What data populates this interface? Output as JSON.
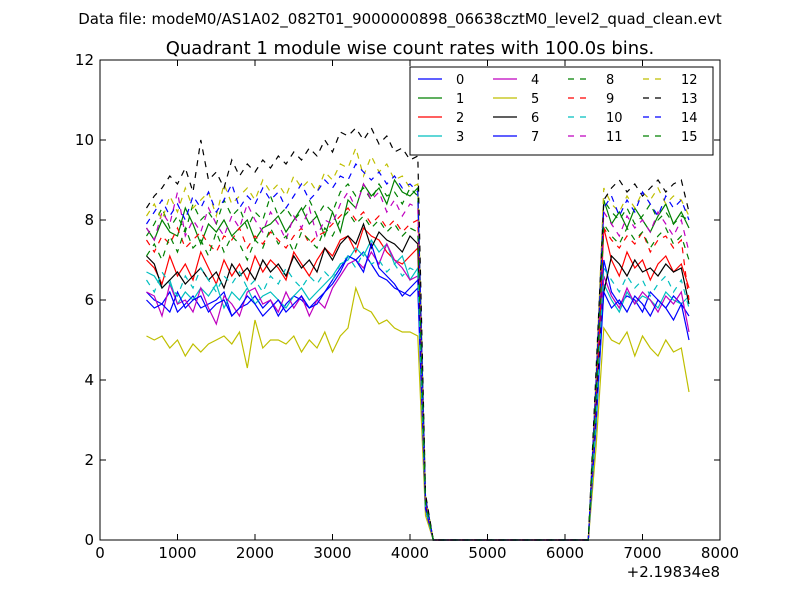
{
  "suptitle": "Data file: modeM0/AS1A02_082T01_9000000898_06638cztM0_level2_quad_clean.evt",
  "chart_data": {
    "type": "line",
    "title": "Quadrant 1 module wise count rates with 100.0s bins.",
    "xlabel": "",
    "ylabel": "",
    "x_offset_label": "+2.19834e8",
    "xlim": [
      0,
      8000
    ],
    "ylim": [
      0,
      12
    ],
    "xticks": [
      0,
      1000,
      2000,
      3000,
      4000,
      5000,
      6000,
      7000,
      8000
    ],
    "yticks": [
      0,
      2,
      4,
      6,
      8,
      10,
      12
    ],
    "grid": false,
    "legend_position": "top-right",
    "segments": [
      {
        "x_start": 600,
        "x_end": 4100,
        "step": 100,
        "y_index_start": 0
      },
      {
        "x_start": 4100,
        "x_end": 4300,
        "values_fraction": [
          1.0,
          0.12,
          0.0
        ]
      },
      {
        "x_start": 4300,
        "x_end": 6300,
        "baseline": 0
      },
      {
        "x_start": 6300,
        "x_end": 7600,
        "step": 100
      }
    ],
    "series": [
      {
        "name": "0",
        "color": "#0000ff",
        "dashed": false,
        "active": [
          6.2,
          6.0,
          5.9,
          6.2,
          5.7,
          5.9,
          6.1,
          5.8,
          5.9,
          6.0,
          6.2,
          5.6,
          5.8,
          5.9,
          6.1,
          5.8,
          6.0,
          5.6,
          5.9,
          6.1,
          6.0,
          5.8,
          6.0,
          6.2,
          6.5,
          6.8,
          7.1,
          7.0,
          7.2,
          6.9,
          6.6,
          6.5,
          6.3,
          6.2,
          6.1,
          6.3
        ],
        "active2": [
          0.0,
          3.0,
          7.0,
          6.2,
          5.9,
          6.1,
          6.0,
          5.7,
          6.2,
          6.0,
          5.8,
          6.1,
          5.9,
          5.6
        ]
      },
      {
        "name": "1",
        "color": "#008000",
        "dashed": false,
        "active": [
          7.8,
          7.5,
          8.0,
          7.7,
          7.6,
          8.3,
          7.9,
          7.4,
          7.9,
          7.7,
          8.0,
          7.6,
          7.8,
          8.0,
          7.5,
          7.8,
          7.9,
          8.1,
          7.7,
          8.0,
          8.3,
          7.9,
          8.1,
          7.6,
          8.2,
          7.7,
          8.5,
          8.3,
          8.9,
          8.6,
          8.8,
          8.4,
          9.0,
          8.7,
          8.6,
          8.8
        ],
        "active2": [
          0.0,
          3.6,
          8.5,
          7.9,
          8.2,
          7.8,
          8.3,
          8.0,
          7.7,
          8.1,
          8.4,
          7.9,
          8.2,
          7.8
        ]
      },
      {
        "name": "2",
        "color": "#ff0000",
        "dashed": false,
        "active": [
          7.0,
          6.8,
          6.4,
          7.1,
          6.6,
          6.9,
          6.5,
          7.2,
          6.8,
          6.4,
          7.0,
          6.6,
          6.9,
          6.5,
          7.1,
          6.7,
          7.0,
          6.8,
          6.5,
          7.2,
          6.9,
          6.6,
          7.0,
          7.3,
          7.1,
          7.5,
          7.6,
          7.2,
          7.8,
          7.6,
          7.5,
          7.2,
          7.0,
          6.9,
          7.1,
          7.3
        ],
        "active2": [
          0.0,
          3.2,
          7.8,
          7.0,
          6.6,
          7.2,
          6.8,
          7.0,
          6.5,
          6.9,
          7.1,
          6.7,
          6.9,
          6.3
        ]
      },
      {
        "name": "3",
        "color": "#00bfbf",
        "dashed": false,
        "active": [
          6.7,
          6.6,
          6.3,
          6.5,
          5.9,
          6.2,
          6.0,
          6.3,
          6.1,
          6.4,
          5.8,
          6.2,
          6.0,
          6.3,
          5.9,
          6.1,
          6.2,
          6.0,
          5.8,
          6.1,
          6.3,
          6.0,
          6.2,
          6.4,
          6.6,
          6.9,
          7.0,
          7.3,
          7.1,
          7.5,
          7.2,
          7.4,
          6.9,
          7.1,
          6.5,
          6.8
        ],
        "active2": [
          0.0,
          2.8,
          6.4,
          6.0,
          5.7,
          6.2,
          5.9,
          6.1,
          6.0,
          5.8,
          6.2,
          6.0,
          5.9,
          6.1
        ]
      },
      {
        "name": "4",
        "color": "#bf00bf",
        "dashed": false,
        "active": [
          6.2,
          6.1,
          5.6,
          6.4,
          5.9,
          6.0,
          5.7,
          6.3,
          5.8,
          5.4,
          6.1,
          5.9,
          5.6,
          6.2,
          6.3,
          5.9,
          6.0,
          5.7,
          6.2,
          5.8,
          6.1,
          5.6,
          6.0,
          5.8,
          6.3,
          6.6,
          6.9,
          7.0,
          6.8,
          7.2,
          6.9,
          7.4,
          7.0,
          6.8,
          6.5,
          6.6
        ],
        "active2": [
          0.0,
          2.9,
          6.6,
          6.1,
          5.8,
          6.3,
          5.9,
          6.2,
          6.0,
          5.7,
          6.1,
          5.9,
          6.2,
          5.2
        ]
      },
      {
        "name": "5",
        "color": "#bfbf00",
        "dashed": false,
        "active": [
          5.1,
          5.0,
          5.1,
          4.8,
          5.0,
          4.6,
          4.9,
          4.7,
          4.9,
          5.0,
          5.1,
          4.9,
          5.2,
          4.3,
          5.5,
          4.8,
          5.0,
          5.0,
          4.9,
          5.1,
          4.7,
          5.0,
          4.8,
          5.2,
          4.7,
          5.1,
          5.3,
          6.3,
          5.8,
          5.7,
          5.4,
          5.5,
          5.3,
          5.2,
          5.2,
          5.1
        ],
        "active2": [
          0.0,
          2.3,
          5.3,
          5.0,
          4.9,
          5.2,
          4.6,
          5.1,
          4.8,
          4.6,
          5.0,
          4.7,
          4.8,
          3.7
        ]
      },
      {
        "name": "6",
        "color": "#000000",
        "dashed": false,
        "active": [
          7.1,
          6.9,
          6.3,
          6.5,
          6.7,
          6.4,
          6.6,
          6.8,
          6.5,
          6.7,
          6.3,
          6.9,
          6.6,
          6.8,
          6.5,
          7.0,
          6.7,
          6.9,
          6.6,
          7.1,
          6.8,
          7.0,
          6.7,
          7.3,
          7.0,
          7.4,
          7.6,
          7.4,
          7.9,
          7.3,
          7.7,
          7.5,
          7.4,
          7.2,
          7.6,
          7.4
        ],
        "active2": [
          0.0,
          3.4,
          6.2,
          7.1,
          6.9,
          6.6,
          7.0,
          6.7,
          6.8,
          6.6,
          6.9,
          6.7,
          6.8,
          5.9
        ]
      },
      {
        "name": "7",
        "color": "#0000ff",
        "dashed": false,
        "active": [
          6.0,
          5.8,
          5.9,
          5.7,
          6.2,
          5.8,
          6.0,
          6.1,
          5.7,
          5.9,
          6.0,
          5.6,
          5.8,
          6.1,
          5.9,
          5.6,
          5.8,
          6.0,
          5.7,
          5.9,
          6.1,
          5.8,
          5.9,
          6.2,
          6.4,
          6.7,
          7.1,
          7.0,
          6.7,
          7.4,
          6.8,
          6.6,
          6.4,
          6.1,
          6.3,
          6.5
        ],
        "active2": [
          0.0,
          2.9,
          6.2,
          5.8,
          6.0,
          5.7,
          6.1,
          5.9,
          5.6,
          6.0,
          5.8,
          5.5,
          5.9,
          5.0
        ]
      },
      {
        "name": "8",
        "color": "#008000",
        "dashed": true,
        "active": [
          7.6,
          7.9,
          8.3,
          7.8,
          8.1,
          7.7,
          8.4,
          8.0,
          8.2,
          7.9,
          8.5,
          8.1,
          8.3,
          7.8,
          8.2,
          8.0,
          8.6,
          8.1,
          8.3,
          8.0,
          8.2,
          8.5,
          8.1,
          8.4,
          8.2,
          8.7,
          8.9,
          8.6,
          8.8,
          8.5,
          8.9,
          8.6,
          8.7,
          8.4,
          8.8,
          8.6
        ],
        "active2": [
          0.0,
          3.8,
          8.5,
          8.2,
          8.0,
          8.3,
          7.9,
          8.1,
          8.4,
          8.0,
          8.2,
          7.9,
          8.1,
          8.0
        ]
      },
      {
        "name": "9",
        "color": "#ff0000",
        "dashed": true,
        "active": [
          7.5,
          7.2,
          7.6,
          7.4,
          7.8,
          7.3,
          7.5,
          7.7,
          7.4,
          7.2,
          7.6,
          7.5,
          7.8,
          7.3,
          7.6,
          7.4,
          7.7,
          7.5,
          7.3,
          7.6,
          7.8,
          7.4,
          7.6,
          7.7,
          7.9,
          8.1,
          8.3,
          8.0,
          8.2,
          7.9,
          8.1,
          7.8,
          8.0,
          7.7,
          7.9,
          8.0
        ],
        "active2": [
          0.0,
          3.5,
          7.8,
          7.5,
          7.3,
          7.6,
          7.4,
          7.7,
          7.2,
          7.5,
          7.6,
          7.3,
          7.5,
          6.0
        ]
      },
      {
        "name": "10",
        "color": "#00bfbf",
        "dashed": true,
        "active": [
          6.5,
          6.2,
          6.7,
          6.4,
          6.1,
          6.6,
          6.3,
          6.8,
          6.5,
          6.2,
          6.6,
          6.4,
          6.7,
          6.3,
          6.5,
          6.2,
          6.6,
          6.4,
          6.8,
          6.5,
          6.3,
          6.6,
          6.4,
          6.7,
          6.5,
          6.9,
          7.1,
          6.8,
          7.2,
          6.9,
          7.0,
          6.7,
          6.9,
          6.6,
          6.8,
          6.7
        ],
        "active2": [
          0.0,
          3.0,
          6.8,
          6.5,
          6.2,
          6.6,
          6.3,
          6.5,
          6.1,
          6.4,
          6.6,
          6.2,
          6.5,
          5.8
        ]
      },
      {
        "name": "11",
        "color": "#bf00bf",
        "dashed": true,
        "active": [
          7.8,
          7.5,
          8.2,
          7.9,
          8.7,
          7.6,
          8.0,
          7.7,
          8.3,
          7.9,
          7.6,
          8.1,
          7.8,
          8.4,
          8.0,
          7.7,
          8.2,
          7.9,
          7.5,
          8.1,
          7.8,
          8.3,
          7.6,
          8.0,
          7.9,
          8.4,
          8.7,
          8.3,
          8.9,
          8.5,
          8.7,
          8.2,
          8.5,
          8.1,
          8.4,
          8.3
        ],
        "active2": [
          0.0,
          3.7,
          8.2,
          7.9,
          7.6,
          8.1,
          7.8,
          8.0,
          7.7,
          8.2,
          7.9,
          7.6,
          8.0,
          7.2
        ]
      },
      {
        "name": "12",
        "color": "#bfbf00",
        "dashed": true,
        "active": [
          8.1,
          8.4,
          8.0,
          8.6,
          8.2,
          8.8,
          8.3,
          8.5,
          8.7,
          8.1,
          8.9,
          8.4,
          8.6,
          8.8,
          8.5,
          9.0,
          8.7,
          8.9,
          8.6,
          9.1,
          8.8,
          9.0,
          8.7,
          9.2,
          9.0,
          9.4,
          9.3,
          9.8,
          9.1,
          9.6,
          9.2,
          9.4,
          9.0,
          9.1,
          8.8,
          8.9
        ],
        "active2": [
          0.0,
          4.0,
          8.8,
          8.4,
          8.2,
          8.6,
          8.3,
          8.7,
          8.5,
          8.8,
          8.4,
          8.6,
          8.5,
          8.1
        ]
      },
      {
        "name": "13",
        "color": "#000000",
        "dashed": true,
        "active": [
          8.3,
          8.6,
          8.8,
          9.1,
          8.9,
          9.3,
          8.7,
          10.0,
          9.0,
          9.2,
          8.8,
          9.5,
          9.1,
          9.4,
          9.2,
          9.5,
          9.3,
          9.6,
          9.4,
          9.7,
          9.5,
          9.8,
          9.6,
          10.0,
          9.7,
          10.2,
          10.1,
          10.3,
          10.0,
          10.3,
          9.9,
          10.1,
          9.7,
          9.8,
          9.5,
          9.6
        ],
        "active2": [
          0.0,
          4.2,
          8.5,
          8.8,
          9.0,
          8.7,
          8.9,
          8.6,
          8.8,
          9.0,
          8.7,
          8.9,
          9.0,
          8.2
        ]
      },
      {
        "name": "14",
        "color": "#0000ff",
        "dashed": true,
        "active": [
          7.9,
          8.2,
          8.5,
          8.1,
          8.4,
          8.0,
          8.6,
          8.3,
          8.7,
          8.2,
          8.5,
          8.9,
          8.3,
          8.6,
          8.4,
          8.8,
          8.5,
          8.7,
          8.3,
          8.6,
          8.9,
          8.5,
          8.7,
          9.0,
          8.8,
          9.1,
          9.0,
          9.4,
          9.2,
          9.0,
          9.2,
          8.9,
          9.1,
          8.8,
          8.9,
          8.7
        ],
        "active2": [
          0.0,
          3.9,
          8.3,
          8.6,
          8.1,
          8.5,
          8.2,
          8.7,
          8.4,
          8.1,
          8.6,
          8.3,
          8.5,
          8.0
        ]
      },
      {
        "name": "15",
        "color": "#008000",
        "dashed": true,
        "active": [
          7.1,
          7.4,
          7.0,
          7.6,
          7.2,
          7.8,
          7.3,
          7.5,
          7.1,
          7.7,
          7.2,
          7.6,
          7.4,
          7.0,
          7.5,
          7.3,
          7.8,
          7.4,
          7.6,
          7.2,
          7.7,
          7.5,
          7.3,
          7.8,
          7.6,
          8.0,
          8.2,
          7.9,
          8.1,
          7.8,
          8.0,
          7.7,
          7.9,
          7.6,
          7.8,
          7.7
        ],
        "active2": [
          0.0,
          3.6,
          7.9,
          7.6,
          7.4,
          7.8,
          7.5,
          7.7,
          7.3,
          7.6,
          7.8,
          7.4,
          7.6,
          7.0
        ]
      }
    ]
  }
}
